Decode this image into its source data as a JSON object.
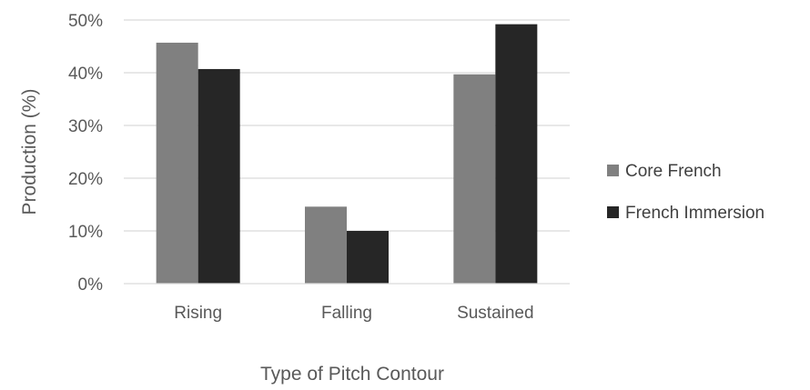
{
  "chart_data": {
    "type": "bar",
    "title": "",
    "xlabel": "Type of Pitch Contour",
    "ylabel": "Production (%)",
    "categories": [
      "Rising",
      "Falling",
      "Sustained"
    ],
    "ylim": [
      0,
      50
    ],
    "yticks": [
      0,
      10,
      20,
      30,
      40,
      50
    ],
    "ytick_labels": [
      "0%",
      "10%",
      "20%",
      "30%",
      "40%",
      "50%"
    ],
    "grid": true,
    "legend_position": "right",
    "series": [
      {
        "name": "Core French",
        "color": "#808080",
        "values": [
          45.7,
          14.6,
          39.7
        ]
      },
      {
        "name": "French Immersion",
        "color": "#262626",
        "values": [
          40.7,
          10.0,
          49.2
        ]
      }
    ]
  }
}
